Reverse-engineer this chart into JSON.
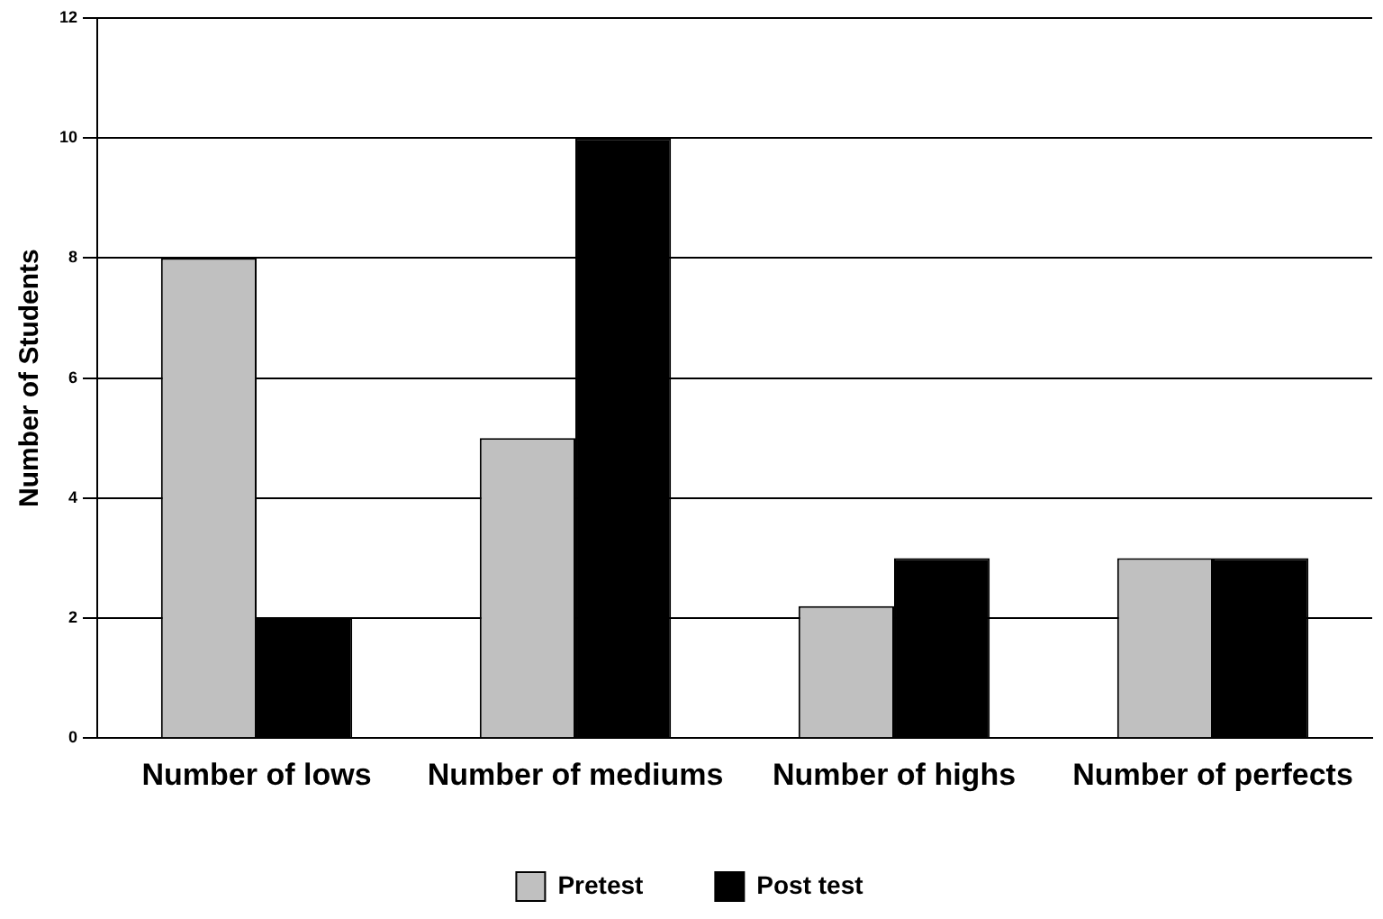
{
  "chart_data": {
    "type": "bar",
    "ylabel": "Number of Students",
    "categories": [
      "Number of lows",
      "Number of mediums",
      "Number of highs",
      "Number of perfects"
    ],
    "series": [
      {
        "name": "Pretest",
        "color": "#c0c0c0",
        "values": [
          8,
          5,
          2.2,
          3
        ]
      },
      {
        "name": "Post test",
        "color": "#000000",
        "values": [
          2,
          10,
          3,
          3
        ]
      }
    ],
    "ylim": [
      0,
      12
    ],
    "yticks": [
      0,
      2,
      4,
      6,
      8,
      10,
      12
    ],
    "grid": "y",
    "legend": "bottom"
  }
}
